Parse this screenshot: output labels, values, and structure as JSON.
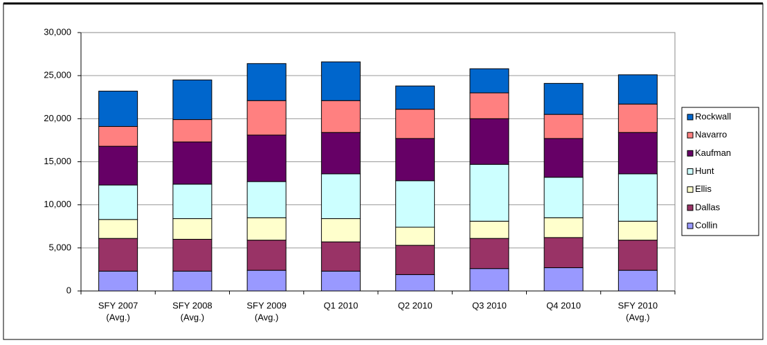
{
  "chart_data": {
    "type": "stacked-bar",
    "categories": [
      [
        "SFY 2007",
        "(Avg.)"
      ],
      [
        "SFY 2008",
        "(Avg.)"
      ],
      [
        "SFY 2009",
        "(Avg.)"
      ],
      [
        "Q1 2010"
      ],
      [
        "Q2 2010"
      ],
      [
        "Q3 2010"
      ],
      [
        "Q4 2010"
      ],
      [
        "SFY 2010",
        "(Avg.)"
      ]
    ],
    "series": [
      {
        "name": "Collin",
        "color": "#9999ff",
        "values": [
          2300,
          2300,
          2400,
          2300,
          1900,
          2600,
          2700,
          2400
        ]
      },
      {
        "name": "Dallas",
        "color": "#993366",
        "values": [
          3800,
          3700,
          3500,
          3400,
          3400,
          3500,
          3500,
          3500
        ]
      },
      {
        "name": "Ellis",
        "color": "#ffffcc",
        "values": [
          2200,
          2400,
          2600,
          2700,
          2100,
          2000,
          2300,
          2200
        ]
      },
      {
        "name": "Hunt",
        "color": "#ccffff",
        "values": [
          4000,
          4000,
          4200,
          5200,
          5400,
          6600,
          4700,
          5500
        ]
      },
      {
        "name": "Kaufman",
        "color": "#660066",
        "values": [
          4500,
          4900,
          5400,
          4800,
          4900,
          5300,
          4500,
          4800
        ]
      },
      {
        "name": "Navarro",
        "color": "#ff8080",
        "values": [
          2300,
          2600,
          4000,
          3700,
          3400,
          3000,
          2800,
          3300
        ]
      },
      {
        "name": "Rockwall",
        "color": "#0066cc",
        "values": [
          4100,
          4600,
          4300,
          4500,
          2700,
          2800,
          3600,
          3400
        ]
      }
    ],
    "ylim": [
      0,
      30000
    ],
    "yticks": [
      0,
      {
        "value": 5000,
        "label": "5,000"
      },
      {
        "value": 10000,
        "label": "10,000"
      },
      {
        "value": 15000,
        "label": "15,000"
      },
      {
        "value": 20000,
        "label": "20,000"
      },
      {
        "value": 25000,
        "label": "25,000"
      },
      {
        "value": 30000,
        "label": "30,000"
      }
    ],
    "grid": true,
    "legend": "right"
  }
}
